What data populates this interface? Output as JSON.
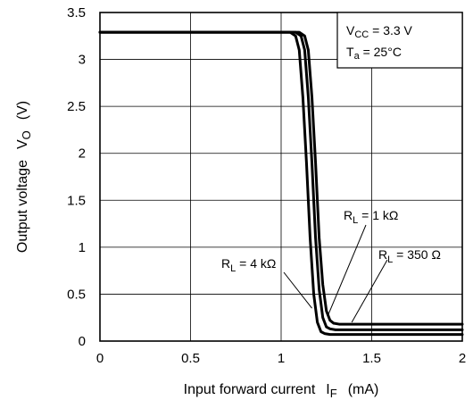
{
  "chart_data": {
    "type": "line",
    "xlabel": {
      "main": "Input forward current",
      "symbol": "I",
      "subscript": "F",
      "unit": "(mA)"
    },
    "ylabel": {
      "main": "Output voltage",
      "symbol": "V",
      "subscript": "O",
      "unit": "(V)"
    },
    "xlim": [
      0,
      2
    ],
    "ylim": [
      0,
      3.5
    ],
    "xticks": [
      0,
      0.5,
      1,
      1.5,
      2
    ],
    "xtick_labels": [
      "0",
      "0.5",
      "1",
      "1.5",
      "2"
    ],
    "yticks": [
      0,
      0.5,
      1,
      1.5,
      2,
      2.5,
      3,
      3.5
    ],
    "ytick_labels": [
      "0",
      "0.5",
      "1",
      "1.5",
      "2",
      "2.5",
      "3",
      "3.5"
    ],
    "grid": true,
    "conditions_box": {
      "vcc_label": "V",
      "vcc_sub": "CC",
      "vcc_value": " = 3.3 V",
      "ta_label": "T",
      "ta_sub": "a",
      "ta_value": " = 25°C"
    },
    "series": [
      {
        "name_main": "R",
        "name_sub": "L",
        "name_value": " = 4 kΩ",
        "x": [
          0,
          1.05,
          1.08,
          1.1,
          1.12,
          1.14,
          1.16,
          1.18,
          1.2,
          1.22,
          1.24,
          1.27,
          1.3,
          1.35,
          2
        ],
        "y": [
          3.29,
          3.29,
          3.25,
          3.1,
          2.6,
          1.9,
          1.1,
          0.5,
          0.2,
          0.1,
          0.08,
          0.07,
          0.07,
          0.07,
          0.07
        ]
      },
      {
        "name_main": "R",
        "name_sub": "L",
        "name_value": " = 1 kΩ",
        "x": [
          0,
          1.08,
          1.11,
          1.13,
          1.15,
          1.17,
          1.19,
          1.21,
          1.23,
          1.25,
          1.27,
          1.3,
          1.33,
          1.38,
          2
        ],
        "y": [
          3.29,
          3.29,
          3.25,
          3.1,
          2.6,
          1.9,
          1.1,
          0.55,
          0.25,
          0.15,
          0.13,
          0.12,
          0.12,
          0.12,
          0.12
        ]
      },
      {
        "name_main": "R",
        "name_sub": "L",
        "name_value": " = 350 Ω",
        "x": [
          0,
          1.1,
          1.13,
          1.15,
          1.17,
          1.19,
          1.21,
          1.23,
          1.25,
          1.27,
          1.29,
          1.32,
          1.35,
          1.4,
          2
        ],
        "y": [
          3.29,
          3.29,
          3.25,
          3.1,
          2.6,
          1.9,
          1.1,
          0.6,
          0.32,
          0.22,
          0.19,
          0.18,
          0.18,
          0.18,
          0.18
        ]
      }
    ],
    "annotations": [
      {
        "series_index": 0,
        "placement": "left",
        "target_x": 1.17,
        "target_y": 0.35
      },
      {
        "series_index": 1,
        "placement": "upper-right",
        "target_x": 1.26,
        "target_y": 0.28
      },
      {
        "series_index": 2,
        "placement": "right",
        "target_x": 1.39,
        "target_y": 0.2
      }
    ]
  }
}
